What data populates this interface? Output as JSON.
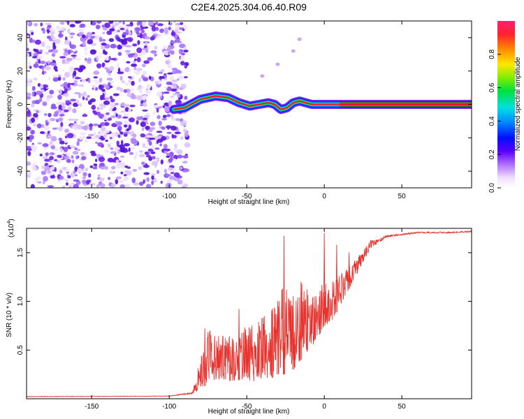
{
  "title": "C2E4.2025.304.06.40.R09",
  "colors": {
    "snr_line": "#e8322d",
    "axis": "#000000",
    "background": "#ffffff",
    "scatter_purple": "#7a2cf0",
    "ridge_red": "#ff1030",
    "ridge_green": "#30d040",
    "ridge_blue": "#1020ff"
  },
  "chart_data": [
    {
      "type": "heatmap",
      "name": "spectrogram",
      "xlabel": "Height of straight line (km)",
      "ylabel": "Frequency (Hz)",
      "xlim": [
        -192,
        95
      ],
      "ylim": [
        -50,
        50
      ],
      "xticks": [
        -150,
        -100,
        -50,
        0,
        50
      ],
      "xtick_labels": [
        "-150",
        "-100",
        "-50",
        "0",
        "50"
      ],
      "yticks": [
        -40,
        -20,
        0,
        20,
        40
      ],
      "ytick_labels": [
        "-40",
        "-20",
        "0",
        "20",
        "40"
      ],
      "noise_region_x": [
        -192,
        -90
      ],
      "ridge": {
        "x": [
          -97,
          -90,
          -80,
          -70,
          -62,
          -55,
          -48,
          -42,
          -36,
          -32,
          -28,
          -24,
          -20,
          -16,
          -12,
          -8,
          -4,
          0,
          5,
          10,
          20,
          40,
          60,
          95
        ],
        "y": [
          -3,
          -2,
          3,
          5,
          4,
          1,
          -1,
          0,
          1,
          0,
          -3,
          -2,
          1,
          2,
          1,
          0,
          0,
          0,
          0,
          0,
          0,
          0,
          0,
          0
        ]
      },
      "faint_blobs": [
        {
          "x": -40,
          "y": 17
        },
        {
          "x": -30,
          "y": 24
        },
        {
          "x": -20,
          "y": 32
        },
        {
          "x": -16,
          "y": 39
        }
      ],
      "colorbar": {
        "label": "Normalized spectral amplitude",
        "range": [
          0.0,
          1.0
        ],
        "ticks": [
          0.0,
          0.2,
          0.4,
          0.6,
          0.8
        ],
        "tick_labels": [
          "0.0",
          "0.2",
          "0.4",
          "0.6",
          "0.8"
        ]
      }
    },
    {
      "type": "line",
      "name": "snr",
      "xlabel": "Height of straight line (km)",
      "ylabel": "SNR (10 * v/v)",
      "scale_label_prefix": "(x10",
      "scale_label_exp": "4",
      "scale_label_suffix": ")",
      "xlim": [
        -192,
        95
      ],
      "ylim": [
        0,
        1.75
      ],
      "xticks": [
        -150,
        -100,
        -50,
        0,
        50
      ],
      "xtick_labels": [
        "-150",
        "-100",
        "-50",
        "0",
        "50"
      ],
      "yticks": [
        0.5,
        1.0,
        1.5
      ],
      "ytick_labels": [
        "0.5",
        "1.0",
        "1.5"
      ],
      "envelope": {
        "x": [
          -192,
          -100,
          -85,
          -80,
          -75,
          -70,
          -60,
          -50,
          -45,
          -40,
          -35,
          -30,
          -25,
          -20,
          -15,
          -10,
          -5,
          0,
          5,
          10,
          15,
          20,
          25,
          30,
          35,
          40,
          50,
          60,
          70,
          80,
          95
        ],
        "base": [
          0.02,
          0.025,
          0.05,
          0.1,
          0.15,
          0.2,
          0.18,
          0.2,
          0.18,
          0.22,
          0.2,
          0.25,
          0.25,
          0.3,
          0.4,
          0.5,
          0.6,
          0.75,
          0.8,
          0.95,
          1.1,
          1.25,
          1.4,
          1.55,
          1.6,
          1.66,
          1.68,
          1.7,
          1.7,
          1.7,
          1.71
        ],
        "amplitude": [
          0.005,
          0.005,
          0.02,
          0.3,
          0.55,
          0.5,
          0.45,
          0.6,
          0.55,
          0.65,
          0.7,
          0.85,
          0.95,
          0.75,
          0.8,
          0.6,
          0.55,
          0.45,
          0.4,
          0.35,
          0.25,
          0.2,
          0.12,
          0.08,
          0.04,
          0.02,
          0.015,
          0.015,
          0.015,
          0.015,
          0.015
        ]
      },
      "spikes": [
        {
          "x": -77,
          "y": 0.72
        },
        {
          "x": -55,
          "y": 0.92
        },
        {
          "x": -30,
          "y": 1.0
        },
        {
          "x": -26,
          "y": 1.67
        },
        {
          "x": -20,
          "y": 1.05
        },
        {
          "x": -15,
          "y": 1.2
        },
        {
          "x": 0,
          "y": 1.7
        },
        {
          "x": 8,
          "y": 1.58
        },
        {
          "x": 16,
          "y": 1.5
        }
      ]
    }
  ]
}
